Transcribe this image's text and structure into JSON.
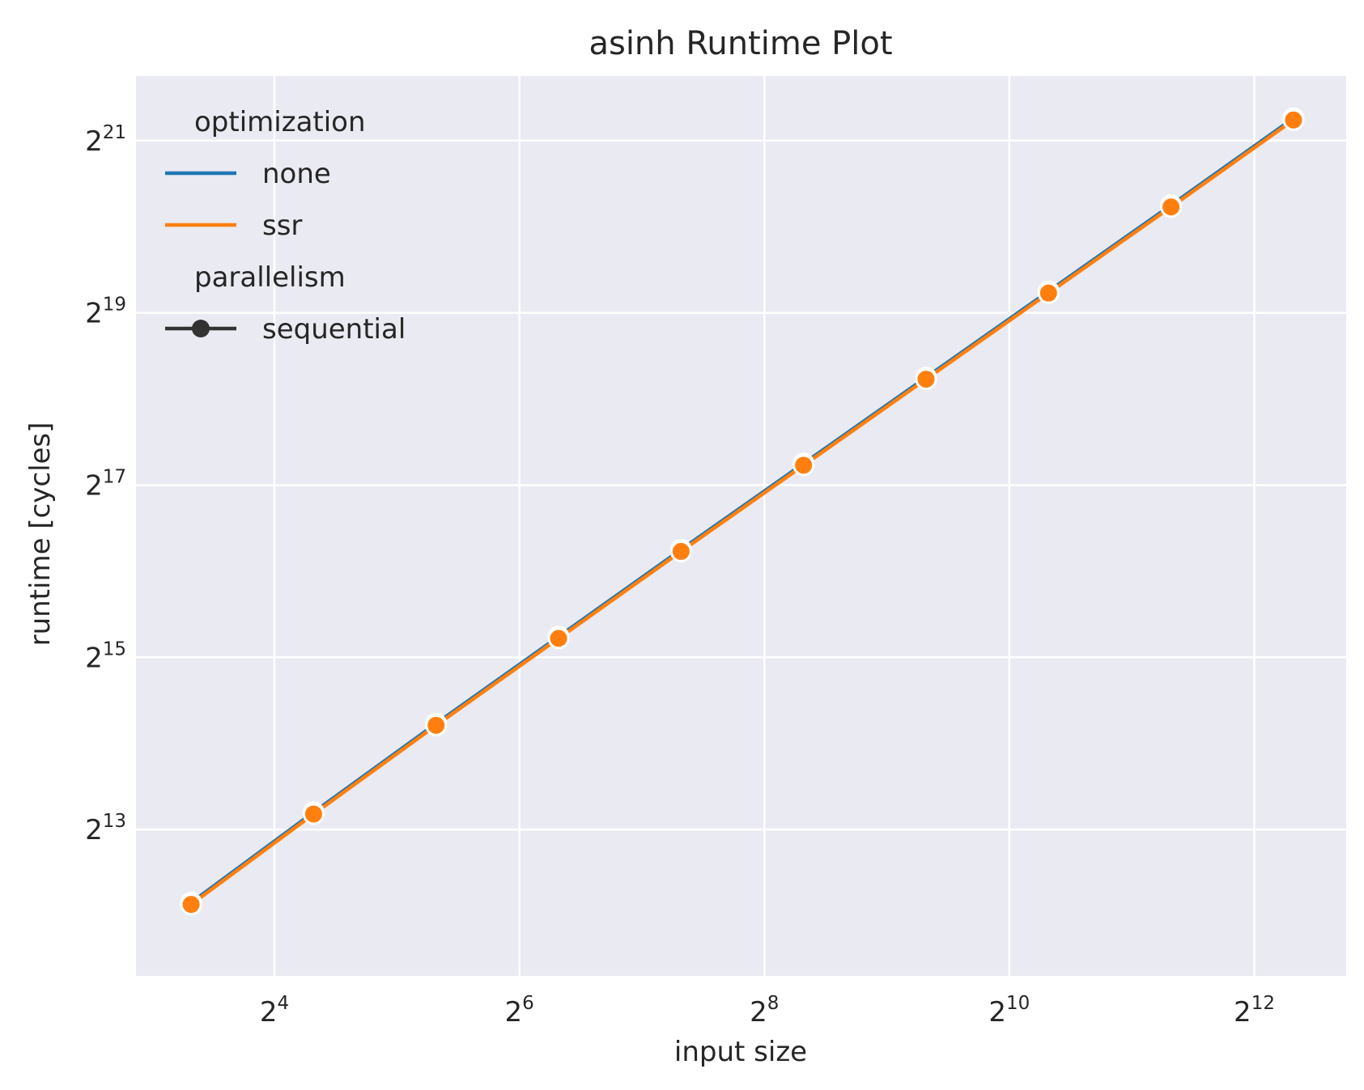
{
  "chart_data": {
    "type": "line",
    "title": "asinh Runtime Plot",
    "xlabel": "input size",
    "ylabel": "runtime [cycles]",
    "x_scale": "log2",
    "y_scale": "log2",
    "xlim_log2": [
      2.87,
      12.75
    ],
    "ylim_log2": [
      11.3,
      21.75
    ],
    "x_ticks": [
      {
        "base": "2",
        "exp": "4",
        "log2": 4
      },
      {
        "base": "2",
        "exp": "6",
        "log2": 6
      },
      {
        "base": "2",
        "exp": "8",
        "log2": 8
      },
      {
        "base": "2",
        "exp": "10",
        "log2": 10
      },
      {
        "base": "2",
        "exp": "12",
        "log2": 12
      }
    ],
    "y_ticks": [
      {
        "base": "2",
        "exp": "13",
        "log2": 13
      },
      {
        "base": "2",
        "exp": "15",
        "log2": 15
      },
      {
        "base": "2",
        "exp": "17",
        "log2": 17
      },
      {
        "base": "2",
        "exp": "19",
        "log2": 19
      },
      {
        "base": "2",
        "exp": "21",
        "log2": 21
      }
    ],
    "grid": true,
    "background": "#eaeaf2",
    "legend_position": "top-left",
    "legend": {
      "groups": [
        {
          "title": "optimization",
          "entries": [
            {
              "label": "none",
              "color": "#1f77b4",
              "marker": false
            },
            {
              "label": "ssr",
              "color": "#ff7f0e",
              "marker": false
            }
          ]
        },
        {
          "title": "parallelism",
          "entries": [
            {
              "label": "sequential",
              "color": "#333333",
              "marker": true
            }
          ]
        }
      ]
    },
    "series": [
      {
        "name": "none",
        "color": "#1f77b4",
        "x_log2": [
          3.32,
          4.32,
          5.32,
          6.32,
          7.32,
          8.32,
          9.32,
          10.32,
          11.32,
          12.32
        ],
        "y_log2": [
          12.15,
          13.2,
          14.23,
          15.24,
          16.25,
          17.25,
          18.25,
          19.25,
          20.25,
          21.26
        ]
      },
      {
        "name": "ssr",
        "color": "#ff7f0e",
        "x_log2": [
          3.32,
          4.32,
          5.32,
          6.32,
          7.32,
          8.32,
          9.32,
          10.32,
          11.32,
          12.32
        ],
        "y_log2": [
          12.13,
          13.18,
          14.21,
          15.22,
          16.23,
          17.23,
          18.23,
          19.23,
          20.23,
          21.24
        ]
      }
    ]
  }
}
